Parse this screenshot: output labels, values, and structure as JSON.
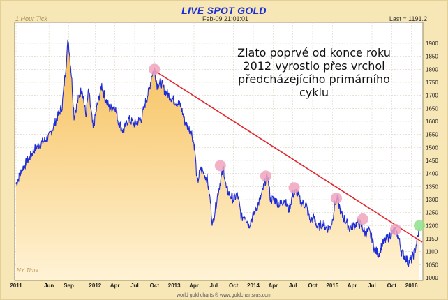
{
  "header": {
    "title": "LIVE SPOT GOLD",
    "tick_label": "1 Hour Tick",
    "timestamp": "Feb-09  21:01:01",
    "last_value": "Last = 1191.2"
  },
  "annotation": {
    "text": "Zlato poprvé od konce roku 2012 vyrostlo přes vrchol předcházejícího primárního cyklu"
  },
  "footer": {
    "watermark": "world gold charts ® www.goldchartsrus.com",
    "timezone": "NY Time"
  },
  "colors": {
    "line": "#1e2bd6",
    "area_top": "#f6be56",
    "area_bottom": "#fff3d6",
    "trendline": "#e2262d",
    "peak_marker": "#f0a3bd",
    "breakout_marker": "#8fe08a"
  },
  "chart_data": {
    "type": "line",
    "title": "LIVE SPOT GOLD",
    "xlabel": "",
    "ylabel": "",
    "ylim": [
      1000,
      1950
    ],
    "x_range": [
      0,
      61.2
    ],
    "x_ticks": [
      {
        "x": 0,
        "label": "2011"
      },
      {
        "x": 5,
        "label": "Jun"
      },
      {
        "x": 8,
        "label": "Sep"
      },
      {
        "x": 12,
        "label": "2012"
      },
      {
        "x": 15,
        "label": "Apr"
      },
      {
        "x": 18,
        "label": "Jul"
      },
      {
        "x": 21,
        "label": "Oct"
      },
      {
        "x": 24,
        "label": "2013"
      },
      {
        "x": 27,
        "label": "Apr"
      },
      {
        "x": 30,
        "label": "Jul"
      },
      {
        "x": 33,
        "label": "Oct"
      },
      {
        "x": 36,
        "label": "2014"
      },
      {
        "x": 39,
        "label": "Apr"
      },
      {
        "x": 42,
        "label": "Jul"
      },
      {
        "x": 45,
        "label": "Oct"
      },
      {
        "x": 48,
        "label": "2015"
      },
      {
        "x": 51,
        "label": "Apr"
      },
      {
        "x": 54,
        "label": "Jul"
      },
      {
        "x": 57,
        "label": "Oct"
      },
      {
        "x": 60,
        "label": "2016"
      }
    ],
    "y_ticks": [
      1000,
      1050,
      1100,
      1150,
      1200,
      1250,
      1300,
      1350,
      1400,
      1450,
      1500,
      1550,
      1600,
      1650,
      1700,
      1750,
      1800,
      1850,
      1900
    ],
    "series": [
      {
        "values": [
          [
            0,
            1360
          ],
          [
            1,
            1420
          ],
          [
            2,
            1460
          ],
          [
            3,
            1500
          ],
          [
            4,
            1520
          ],
          [
            5,
            1540
          ],
          [
            6,
            1600
          ],
          [
            7,
            1660
          ],
          [
            7.7,
            1850
          ],
          [
            7.9,
            1920
          ],
          [
            8.4,
            1780
          ],
          [
            8.8,
            1620
          ],
          [
            9.5,
            1690
          ],
          [
            10,
            1730
          ],
          [
            10.6,
            1620
          ],
          [
            11,
            1720
          ],
          [
            11.7,
            1570
          ],
          [
            12.3,
            1660
          ],
          [
            13,
            1740
          ],
          [
            13.5,
            1690
          ],
          [
            14.2,
            1650
          ],
          [
            15,
            1660
          ],
          [
            15.5,
            1600
          ],
          [
            16.3,
            1560
          ],
          [
            17,
            1610
          ],
          [
            18,
            1590
          ],
          [
            19,
            1610
          ],
          [
            19.7,
            1680
          ],
          [
            20.2,
            1720
          ],
          [
            20.6,
            1780
          ],
          [
            21,
            1800
          ],
          [
            21.4,
            1740
          ],
          [
            22,
            1750
          ],
          [
            22.5,
            1720
          ],
          [
            23.2,
            1700
          ],
          [
            24,
            1680
          ],
          [
            24.5,
            1670
          ],
          [
            25,
            1660
          ],
          [
            25.6,
            1600
          ],
          [
            26,
            1580
          ],
          [
            26.6,
            1560
          ],
          [
            27.1,
            1500
          ],
          [
            27.5,
            1360
          ],
          [
            28,
            1420
          ],
          [
            28.5,
            1400
          ],
          [
            29,
            1380
          ],
          [
            29.5,
            1290
          ],
          [
            29.8,
            1200
          ],
          [
            30.2,
            1260
          ],
          [
            30.6,
            1320
          ],
          [
            31,
            1370
          ],
          [
            31.5,
            1420
          ],
          [
            31.9,
            1340
          ],
          [
            32.4,
            1320
          ],
          [
            33,
            1300
          ],
          [
            33.6,
            1320
          ],
          [
            34.2,
            1230
          ],
          [
            34.8,
            1240
          ],
          [
            35.3,
            1200
          ],
          [
            36,
            1240
          ],
          [
            36.7,
            1280
          ],
          [
            37.3,
            1320
          ],
          [
            37.8,
            1370
          ],
          [
            38.2,
            1390
          ],
          [
            38.6,
            1300
          ],
          [
            39.2,
            1300
          ],
          [
            40,
            1280
          ],
          [
            40.7,
            1300
          ],
          [
            41.4,
            1260
          ],
          [
            42,
            1320
          ],
          [
            42.6,
            1330
          ],
          [
            43.2,
            1290
          ],
          [
            44,
            1280
          ],
          [
            44.6,
            1220
          ],
          [
            45.2,
            1230
          ],
          [
            45.8,
            1190
          ],
          [
            46.5,
            1210
          ],
          [
            47.1,
            1190
          ],
          [
            47.6,
            1190
          ],
          [
            48,
            1220
          ],
          [
            48.4,
            1290
          ],
          [
            48.8,
            1300
          ],
          [
            49.4,
            1240
          ],
          [
            50,
            1220
          ],
          [
            50.6,
            1190
          ],
          [
            51.2,
            1200
          ],
          [
            51.8,
            1210
          ],
          [
            52.4,
            1200
          ],
          [
            53,
            1170
          ],
          [
            53.5,
            1180
          ],
          [
            54,
            1150
          ],
          [
            54.4,
            1110
          ],
          [
            55,
            1090
          ],
          [
            55.6,
            1130
          ],
          [
            56.3,
            1150
          ],
          [
            57,
            1170
          ],
          [
            57.5,
            1180
          ],
          [
            58,
            1160
          ],
          [
            58.5,
            1100
          ],
          [
            59,
            1080
          ],
          [
            59.5,
            1060
          ],
          [
            60,
            1070
          ],
          [
            60.5,
            1100
          ],
          [
            60.9,
            1150
          ],
          [
            61.2,
            1190
          ]
        ]
      }
    ],
    "trendline": {
      "from": [
        21,
        1795
      ],
      "to": [
        61.2,
        1150
      ]
    },
    "markers": [
      {
        "x": 21,
        "y": 1800,
        "kind": "peak"
      },
      {
        "x": 31,
        "y": 1430,
        "kind": "peak"
      },
      {
        "x": 37.9,
        "y": 1390,
        "kind": "peak"
      },
      {
        "x": 42.2,
        "y": 1345,
        "kind": "peak"
      },
      {
        "x": 48.6,
        "y": 1305,
        "kind": "peak"
      },
      {
        "x": 52.6,
        "y": 1225,
        "kind": "peak"
      },
      {
        "x": 57.6,
        "y": 1185,
        "kind": "peak"
      },
      {
        "x": 61.2,
        "y": 1200,
        "kind": "breakout"
      }
    ]
  }
}
